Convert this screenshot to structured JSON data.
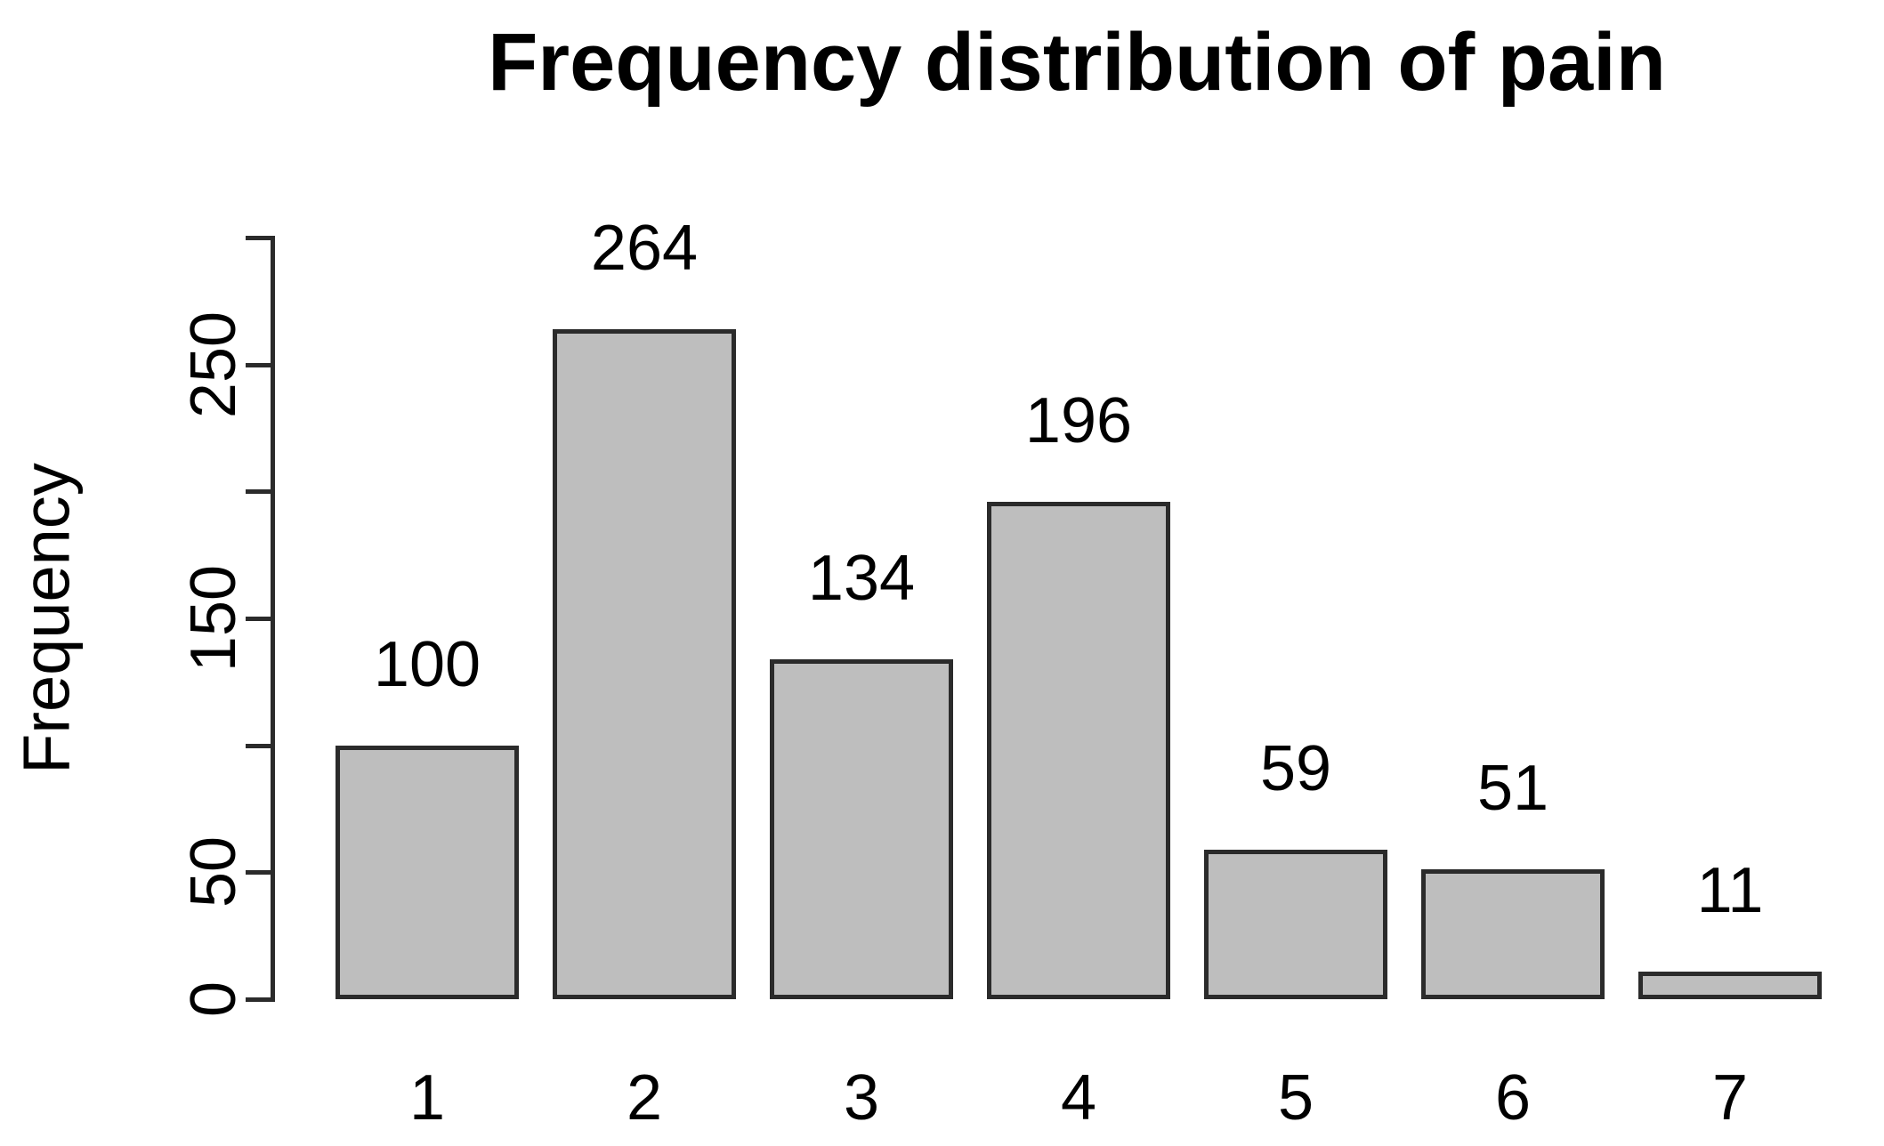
{
  "chart_data": {
    "type": "bar",
    "title": "Frequency distribution of pain",
    "xlabel": "",
    "ylabel": "Frequency",
    "categories": [
      "1",
      "2",
      "3",
      "4",
      "5",
      "6",
      "7"
    ],
    "values": [
      100,
      264,
      134,
      196,
      59,
      51,
      11
    ],
    "bar_value_labels": [
      "100",
      "264",
      "134",
      "196",
      "59",
      "51",
      "11"
    ],
    "ylim": [
      0,
      300
    ],
    "yticks": [
      0,
      50,
      100,
      150,
      200,
      250,
      300
    ],
    "ytick_labels_shown": [
      "0",
      "50",
      "150",
      "250"
    ],
    "grid": false,
    "legend": null,
    "colors": {
      "background": "#ffffff",
      "bar_fill": "#bebebe",
      "bar_border": "#2b2b2b",
      "axis": "#2b2b2b",
      "text": "#000000"
    }
  }
}
